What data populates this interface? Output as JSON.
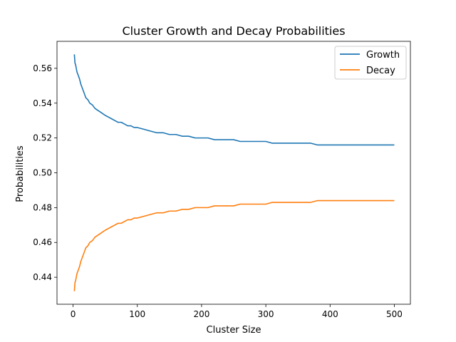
{
  "chart_data": {
    "type": "line",
    "title": "Cluster Growth and Decay Probabilities",
    "xlabel": "Cluster Size",
    "ylabel": "Probabilities",
    "xlim": [
      -25,
      525
    ],
    "ylim": [
      0.4245,
      0.5755
    ],
    "xticks": [
      0,
      100,
      200,
      300,
      400,
      500
    ],
    "yticks": [
      0.44,
      0.46,
      0.48,
      0.5,
      0.52,
      0.54,
      0.56
    ],
    "ytick_labels": [
      "0.44",
      "0.46",
      "0.48",
      "0.50",
      "0.52",
      "0.54",
      "0.56"
    ],
    "grid": false,
    "legend_position": "top-right",
    "series": [
      {
        "name": "Growth",
        "color": "#1f77b4",
        "x": [
          2,
          3,
          4,
          5,
          6,
          8,
          10,
          12,
          14,
          16,
          18,
          20,
          23,
          26,
          30,
          34,
          38,
          42,
          46,
          50,
          55,
          60,
          65,
          70,
          75,
          80,
          85,
          90,
          95,
          100,
          110,
          120,
          130,
          140,
          150,
          160,
          170,
          180,
          190,
          200,
          210,
          220,
          230,
          240,
          250,
          260,
          270,
          280,
          290,
          300,
          310,
          320,
          330,
          340,
          350,
          360,
          370,
          380,
          390,
          400,
          410,
          420,
          430,
          440,
          450,
          460,
          470,
          480,
          490,
          500
        ],
        "y": [
          0.568,
          0.563,
          0.562,
          0.56,
          0.558,
          0.556,
          0.554,
          0.551,
          0.549,
          0.547,
          0.545,
          0.543,
          0.542,
          0.54,
          0.539,
          0.537,
          0.536,
          0.535,
          0.534,
          0.533,
          0.532,
          0.531,
          0.53,
          0.529,
          0.529,
          0.528,
          0.527,
          0.527,
          0.526,
          0.526,
          0.525,
          0.524,
          0.523,
          0.523,
          0.522,
          0.522,
          0.521,
          0.521,
          0.52,
          0.52,
          0.52,
          0.519,
          0.519,
          0.519,
          0.519,
          0.518,
          0.518,
          0.518,
          0.518,
          0.518,
          0.517,
          0.517,
          0.517,
          0.517,
          0.517,
          0.517,
          0.517,
          0.516,
          0.516,
          0.516,
          0.516,
          0.516,
          0.516,
          0.516,
          0.516,
          0.516,
          0.516,
          0.516,
          0.516,
          0.516
        ]
      },
      {
        "name": "Decay",
        "color": "#ff7f0e",
        "x": [
          2,
          3,
          4,
          5,
          6,
          8,
          10,
          12,
          14,
          16,
          18,
          20,
          23,
          26,
          30,
          34,
          38,
          42,
          46,
          50,
          55,
          60,
          65,
          70,
          75,
          80,
          85,
          90,
          95,
          100,
          110,
          120,
          130,
          140,
          150,
          160,
          170,
          180,
          190,
          200,
          210,
          220,
          230,
          240,
          250,
          260,
          270,
          280,
          290,
          300,
          310,
          320,
          330,
          340,
          350,
          360,
          370,
          380,
          390,
          400,
          410,
          420,
          430,
          440,
          450,
          460,
          470,
          480,
          490,
          500
        ],
        "y": [
          0.432,
          0.437,
          0.438,
          0.44,
          0.442,
          0.444,
          0.446,
          0.449,
          0.451,
          0.453,
          0.455,
          0.457,
          0.458,
          0.46,
          0.461,
          0.463,
          0.464,
          0.465,
          0.466,
          0.467,
          0.468,
          0.469,
          0.47,
          0.471,
          0.471,
          0.472,
          0.473,
          0.473,
          0.474,
          0.474,
          0.475,
          0.476,
          0.477,
          0.477,
          0.478,
          0.478,
          0.479,
          0.479,
          0.48,
          0.48,
          0.48,
          0.481,
          0.481,
          0.481,
          0.481,
          0.482,
          0.482,
          0.482,
          0.482,
          0.482,
          0.483,
          0.483,
          0.483,
          0.483,
          0.483,
          0.483,
          0.483,
          0.484,
          0.484,
          0.484,
          0.484,
          0.484,
          0.484,
          0.484,
          0.484,
          0.484,
          0.484,
          0.484,
          0.484,
          0.484
        ]
      }
    ]
  }
}
